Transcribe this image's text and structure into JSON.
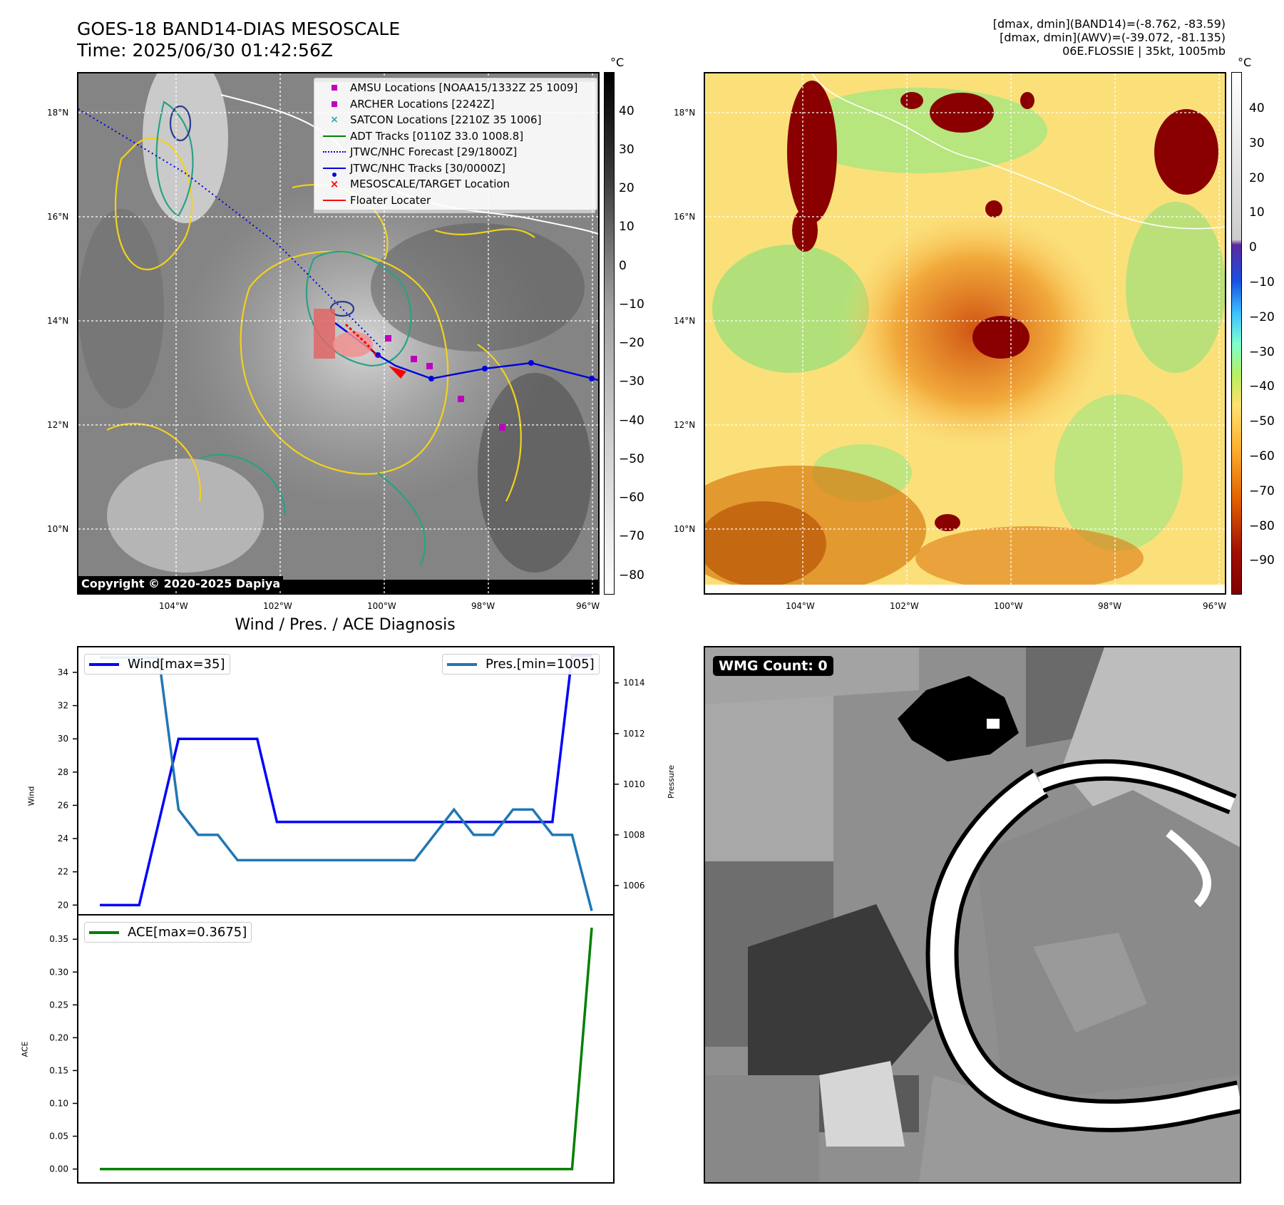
{
  "header": {
    "title_line1": "GOES-18 BAND14-DIAS MESOSCALE",
    "title_line2": "Time: 2025/06/30 01:42:56Z",
    "info_line1": "[dmax, dmin](BAND14)=(-8.762, -83.59)",
    "info_line2": "[dmax, dmin](AWV)=(-39.072, -81.135)",
    "info_line3": "06E.FLOSSIE | 35kt, 1005mb"
  },
  "map_axes": {
    "lat_labels": [
      "18°N",
      "16°N",
      "14°N",
      "12°N",
      "10°N"
    ],
    "lon_labels": [
      "104°W",
      "102°W",
      "100°W",
      "98°W",
      "96°W"
    ]
  },
  "colorbar_left": {
    "unit": "°C",
    "ticks": [
      "40",
      "30",
      "20",
      "10",
      "0",
      "−10",
      "−20",
      "−30",
      "−40",
      "−50",
      "−60",
      "−70",
      "−80"
    ]
  },
  "colorbar_right": {
    "unit": "°C",
    "ticks": [
      "40",
      "30",
      "20",
      "10",
      "0",
      "−10",
      "−20",
      "−30",
      "−40",
      "−50",
      "−60",
      "−70",
      "−80",
      "−90"
    ]
  },
  "legend": {
    "items": [
      {
        "label": "AMSU Locations [NOAA15/1332Z 25 1009]",
        "color": "#c000c0",
        "symbol": "square"
      },
      {
        "label": "ARCHER Locations [2242Z]",
        "color": "#c000c0",
        "symbol": "square"
      },
      {
        "label": "SATCON Locations [2210Z 35 1006]",
        "color": "#20b0b0",
        "symbol": "x"
      },
      {
        "label": "ADT Tracks [0110Z 33.0 1008.8]",
        "color": "#008000",
        "symbol": "line"
      },
      {
        "label": "JTWC/NHC Forecast [29/1800Z]",
        "color": "#0000e0",
        "symbol": "dotted"
      },
      {
        "label": "JTWC/NHC Tracks [30/0000Z]",
        "color": "#0000e0",
        "symbol": "dotline"
      },
      {
        "label": "MESOSCALE/TARGET Location",
        "color": "#ff0000",
        "symbol": "x"
      },
      {
        "label": "Floater Locater",
        "color": "#ff0000",
        "symbol": "line"
      }
    ]
  },
  "copyright": "Copyright © 2020-2025 Dapiya",
  "diagnosis": {
    "title": "Wind / Pres. / ACE Diagnosis",
    "wind_legend": "Wind[max=35]",
    "pres_legend": "Pres.[min=1005]",
    "ace_legend": "ACE[max=0.3675]",
    "wind_axis_label": "Wind",
    "pres_axis_label": "Pressure",
    "ace_axis_label": "ACE"
  },
  "wmg": {
    "badge": "WMG Count: 0"
  },
  "colors": {
    "wind": "#0000ff",
    "pressure": "#1f77b4",
    "ace": "#008000"
  },
  "chart_data": [
    {
      "type": "line",
      "title": "Wind / Pres. / ACE Diagnosis",
      "xlabel": "",
      "ylabel": "Wind",
      "ylim": [
        19.5,
        35.5
      ],
      "y2label": "Pressure",
      "y2lim": [
        1004.9,
        1015.4
      ],
      "x": [
        0,
        1,
        2,
        3,
        4,
        5,
        6,
        7,
        8,
        9,
        10,
        11,
        12,
        13,
        14,
        15,
        16,
        17,
        18,
        19,
        20,
        21,
        22,
        23,
        24,
        25
      ],
      "series": [
        {
          "name": "Wind[max=35]",
          "axis": "left",
          "values": [
            20,
            20,
            20,
            25,
            30,
            30,
            30,
            30,
            30,
            25,
            25,
            25,
            25,
            25,
            25,
            25,
            25,
            25,
            25,
            25,
            25,
            25,
            25,
            25,
            35,
            35
          ]
        },
        {
          "name": "Pres.[min=1005]",
          "axis": "right",
          "values": [
            1015,
            1015,
            1015,
            1015,
            1009,
            1008,
            1008,
            1007,
            1007,
            1007,
            1007,
            1007,
            1007,
            1007,
            1007,
            1007,
            1007,
            1008,
            1009,
            1008,
            1008,
            1009,
            1009,
            1008,
            1008,
            1005
          ]
        }
      ],
      "yticks": [
        20,
        22,
        24,
        26,
        28,
        30,
        32,
        34
      ],
      "y2ticks": [
        1006,
        1008,
        1010,
        1012,
        1014
      ]
    },
    {
      "type": "line",
      "title": "",
      "xlabel": "",
      "ylabel": "ACE",
      "ylim": [
        -0.02,
        0.385
      ],
      "x": [
        0,
        1,
        2,
        3,
        4,
        5,
        6,
        7,
        8,
        9,
        10,
        11,
        12,
        13,
        14,
        15,
        16,
        17,
        18,
        19,
        20,
        21,
        22,
        23,
        24,
        25
      ],
      "series": [
        {
          "name": "ACE[max=0.3675]",
          "values": [
            0,
            0,
            0,
            0,
            0,
            0,
            0,
            0,
            0,
            0,
            0,
            0,
            0,
            0,
            0,
            0,
            0,
            0,
            0,
            0,
            0,
            0,
            0,
            0,
            0,
            0.3675
          ]
        }
      ],
      "yticks": [
        0.0,
        0.05,
        0.1,
        0.15,
        0.2,
        0.25,
        0.3,
        0.35
      ]
    }
  ]
}
